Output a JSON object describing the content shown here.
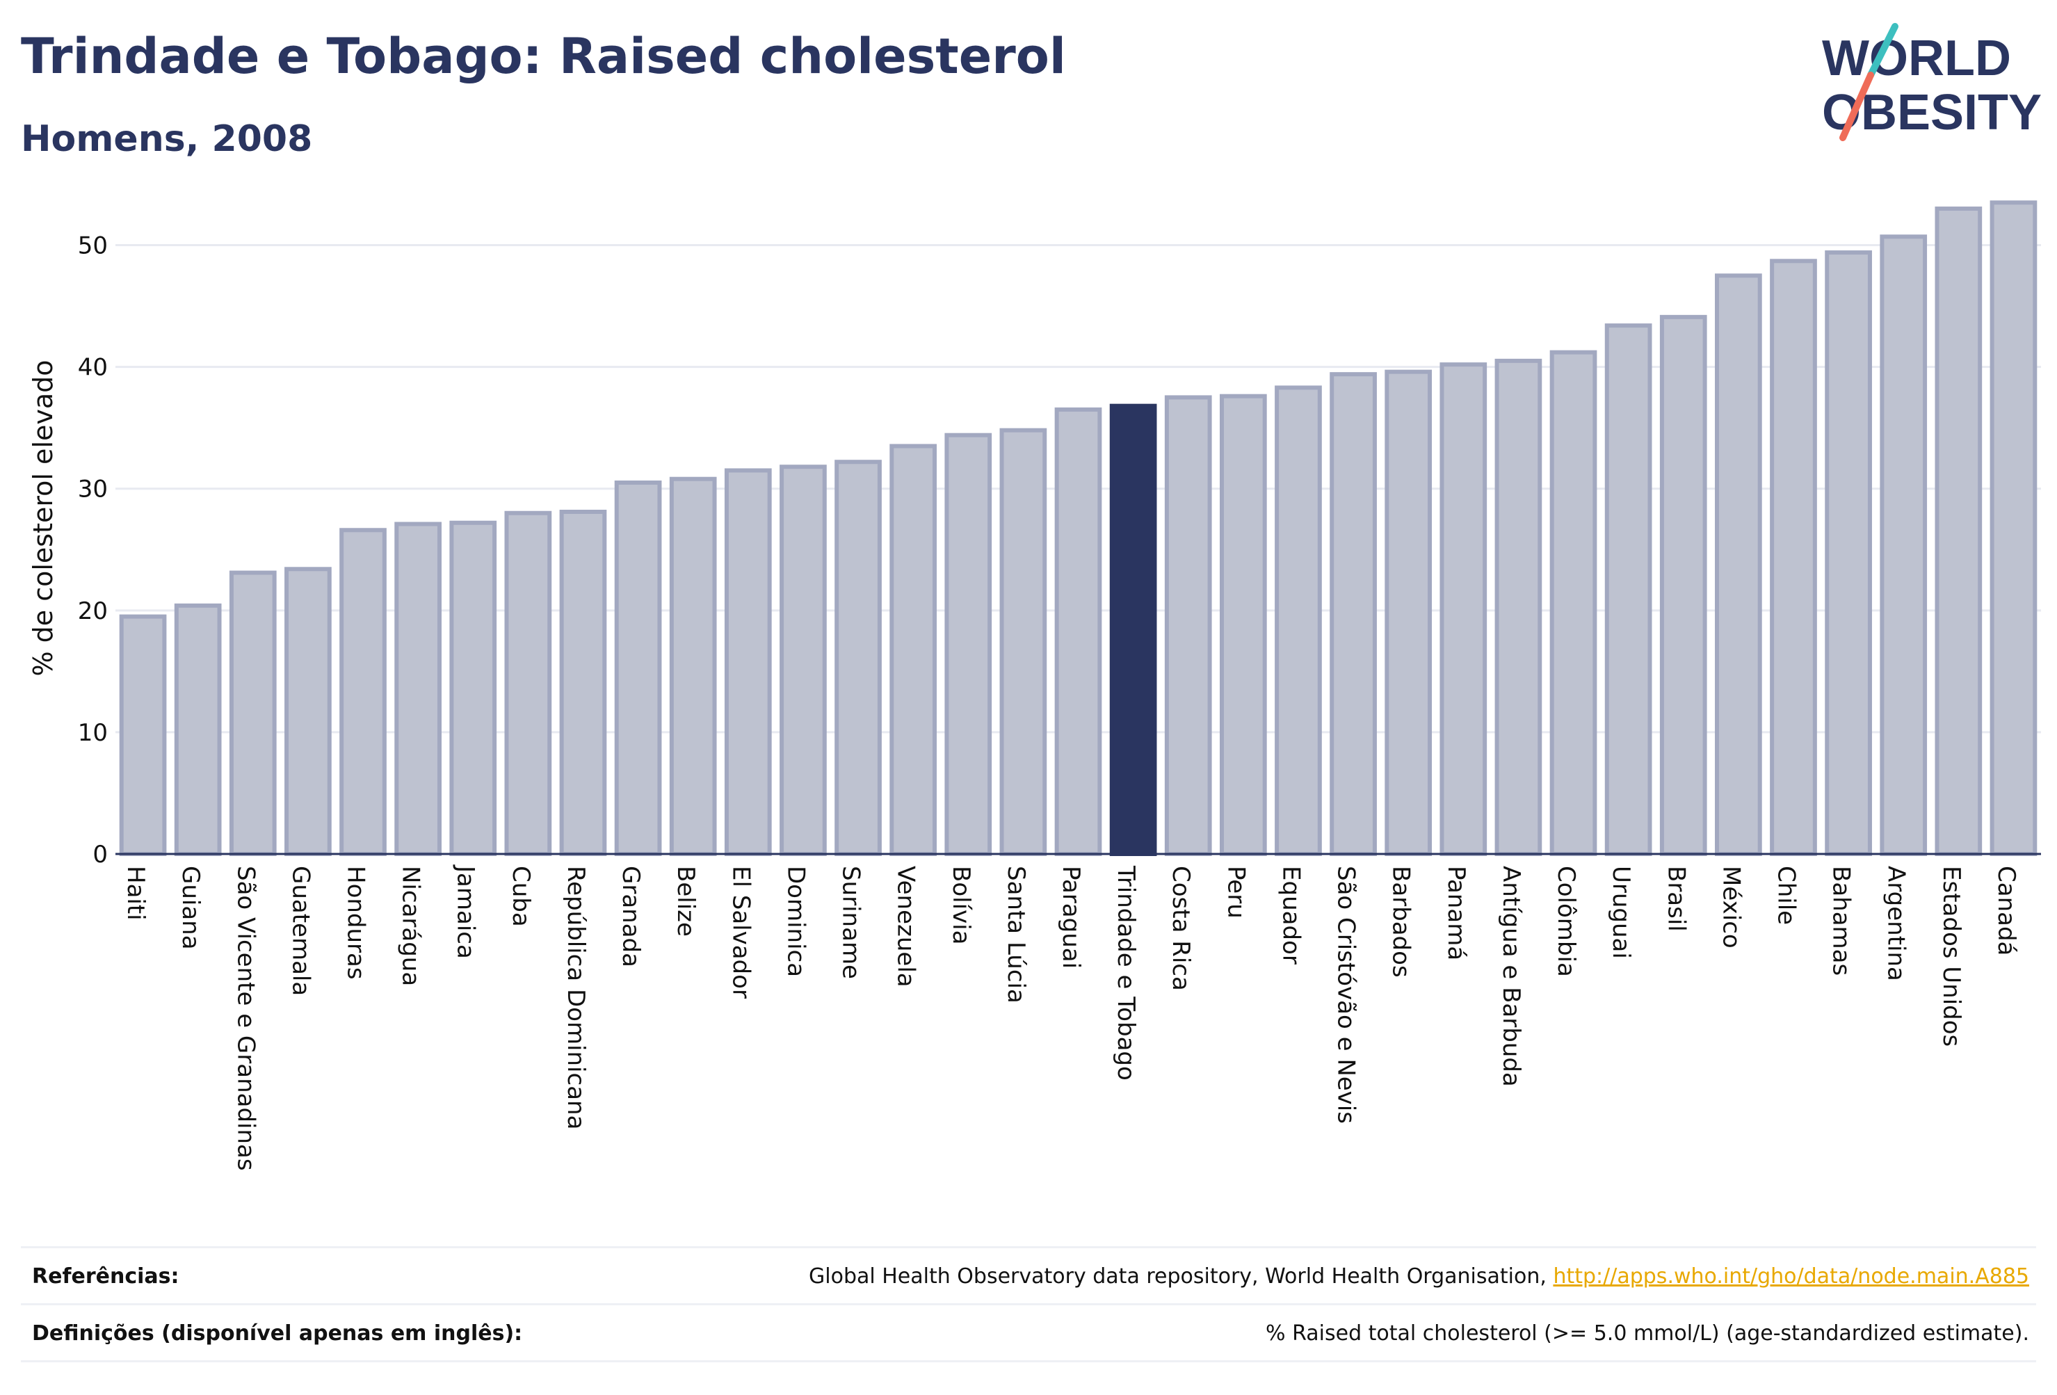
{
  "header": {
    "title": "Trindade e Tobago: Raised cholesterol",
    "subtitle": "Homens, 2008"
  },
  "logo": {
    "line1": "WORLD",
    "line2": "OBESITY"
  },
  "chart_data": {
    "type": "bar",
    "ylabel": "% de colesterol elevado",
    "xlabel": "",
    "ylim": [
      0,
      55
    ],
    "yticks": [
      0,
      10,
      20,
      30,
      40,
      50
    ],
    "grid": true,
    "highlight": "Trindade e Tobago",
    "categories": [
      "Haiti",
      "Guiana",
      "São Vicente e Granadinas",
      "Guatemala",
      "Honduras",
      "Nicarágua",
      "Jamaica",
      "Cuba",
      "República Dominicana",
      "Granada",
      "Belize",
      "El Salvador",
      "Dominica",
      "Suriname",
      "Venezuela",
      "Bolívia",
      "Santa Lúcia",
      "Paraguai",
      "Trindade e Tobago",
      "Costa Rica",
      "Peru",
      "Equador",
      "São Cristóvão e Nevis",
      "Barbados",
      "Panamá",
      "Antígua e Barbuda",
      "Colômbia",
      "Uruguai",
      "Brasil",
      "México",
      "Chile",
      "Bahamas",
      "Argentina",
      "Estados Unidos",
      "Canadá"
    ],
    "values": [
      19.5,
      20.4,
      23.1,
      23.4,
      26.6,
      27.1,
      27.2,
      28.0,
      28.1,
      30.5,
      30.8,
      31.5,
      31.8,
      32.2,
      33.5,
      34.4,
      34.8,
      36.5,
      36.8,
      37.5,
      37.6,
      38.3,
      39.4,
      39.6,
      40.2,
      40.5,
      41.2,
      43.4,
      44.1,
      47.5,
      48.7,
      49.4,
      50.7,
      53.0,
      53.5
    ],
    "colors": {
      "bar": "#bec2d0",
      "bar_edge": "#a2a8c0",
      "highlight": "#2a3560",
      "grid": "#e8eaf1",
      "axis": "#2a3560"
    }
  },
  "footer": {
    "references_label": "Referências:",
    "references_text": "Global Health Observatory data repository, World Health Organisation, ",
    "references_link": "http://apps.who.int/gho/data/node.main.A885",
    "definitions_label": "Definições (disponível apenas em inglês):",
    "definitions_text": "% Raised total cholesterol (>= 5.0 mmol/L) (age-standardized estimate)."
  }
}
